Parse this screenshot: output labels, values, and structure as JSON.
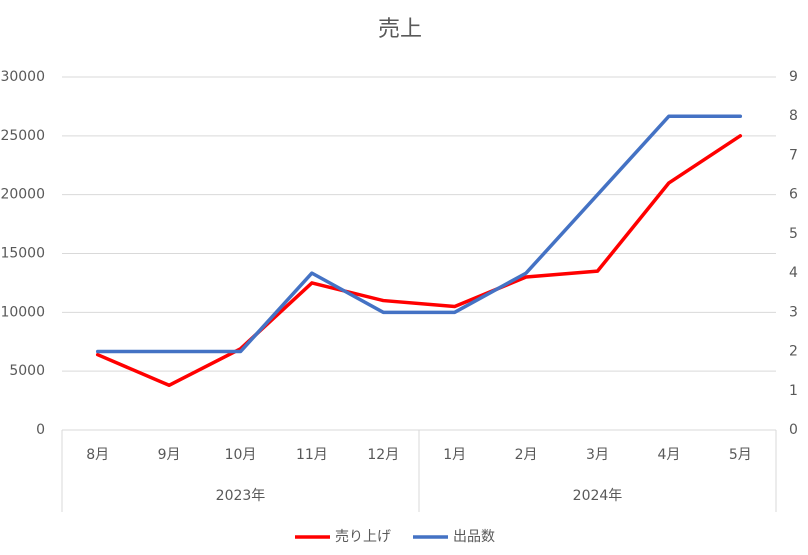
{
  "chart_data": {
    "type": "line",
    "title": "売上",
    "categories": [
      "8月",
      "9月",
      "10月",
      "11月",
      "12月",
      "1月",
      "2月",
      "3月",
      "4月",
      "5月"
    ],
    "category_groups": [
      "2023年",
      null,
      null,
      null,
      null,
      "2024年",
      null,
      null,
      null,
      null
    ],
    "series": [
      {
        "name": "売り上げ",
        "color": "#ff0000",
        "values": [
          6400,
          3800,
          6900,
          12500,
          11000,
          10500,
          13000,
          13500,
          21000,
          25000
        ]
      },
      {
        "name": "出品数",
        "color": "#4472c4",
        "axis": "y2",
        "values": [
          2,
          2,
          2,
          4,
          3,
          3,
          4,
          6,
          8,
          8
        ]
      }
    ],
    "ylim": [
      0,
      30000
    ],
    "yticks": [
      0,
      5000,
      10000,
      15000,
      20000,
      25000,
      30000
    ],
    "y2lim": [
      0,
      9
    ],
    "y2ticks": [
      0,
      1,
      2,
      3,
      4,
      5,
      6,
      7,
      8,
      9
    ],
    "grid": true,
    "legend": "bottom"
  }
}
